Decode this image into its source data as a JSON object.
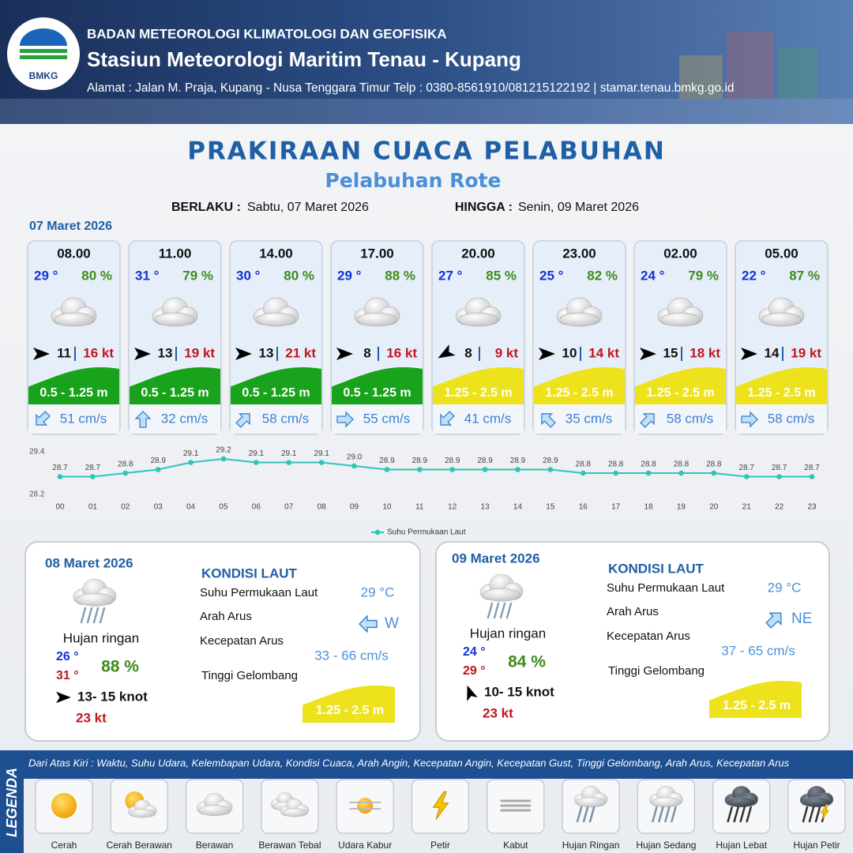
{
  "header": {
    "agency": "BADAN METEOROLOGI KLIMATOLOGI DAN GEOFISIKA",
    "station": "Stasiun Meteorologi Maritim Tenau - Kupang",
    "address": "Alamat : Jalan M. Praja, Kupang - Nusa Tenggara Timur Telp : 0380-8561910/081215122192  | stamar.tenau.bmkg.go.id",
    "logo": "BMKG"
  },
  "title": "PRAKIRAAN CUACA PELABUHAN",
  "subtitle": "Pelabuhan Rote",
  "validity": {
    "from_label": "BERLAKU :",
    "from": "Sabtu, 07 Maret 2026",
    "to_label": "HINGGA :",
    "to": "Senin, 09 Maret 2026"
  },
  "day1": {
    "date": "07 Maret 2026",
    "slots": [
      {
        "time": "08.00",
        "temp": "29 °",
        "humidity": "80 %",
        "wind": "11",
        "gust": "16 kt",
        "wave": "0.5 - 1.25 m",
        "current": "51 cm/s",
        "wind_arrow_deg": 0,
        "current_arrow_deg": 135,
        "wave_color": "#19a31c"
      },
      {
        "time": "11.00",
        "temp": "31 °",
        "humidity": "79 %",
        "wind": "13",
        "gust": "19 kt",
        "wave": "0.5 - 1.25 m",
        "current": "32 cm/s",
        "wind_arrow_deg": 0,
        "current_arrow_deg": -90,
        "wave_color": "#19a31c"
      },
      {
        "time": "14.00",
        "temp": "30 °",
        "humidity": "80 %",
        "wind": "13",
        "gust": "21 kt",
        "wave": "0.5 - 1.25 m",
        "current": "58 cm/s",
        "wind_arrow_deg": 0,
        "current_arrow_deg": -45,
        "wave_color": "#19a31c"
      },
      {
        "time": "17.00",
        "temp": "29 °",
        "humidity": "88 %",
        "wind": "8",
        "gust": "16 kt",
        "wave": "0.5 - 1.25 m",
        "current": "55 cm/s",
        "wind_arrow_deg": 0,
        "current_arrow_deg": 0,
        "wave_color": "#19a31c"
      },
      {
        "time": "20.00",
        "temp": "27 °",
        "humidity": "85 %",
        "wind": "8",
        "gust": "9 kt",
        "wave": "1.25 - 2.5 m",
        "current": "41 cm/s",
        "wind_arrow_deg": 150,
        "current_arrow_deg": 135,
        "wave_color": "#eee21c"
      },
      {
        "time": "23.00",
        "temp": "25 °",
        "humidity": "82 %",
        "wind": "10",
        "gust": "14 kt",
        "wave": "1.25 - 2.5 m",
        "current": "35 cm/s",
        "wind_arrow_deg": 0,
        "current_arrow_deg": -135,
        "wave_color": "#eee21c"
      },
      {
        "time": "02.00",
        "temp": "24 °",
        "humidity": "79 %",
        "wind": "15",
        "gust": "18 kt",
        "wave": "1.25 - 2.5 m",
        "current": "58 cm/s",
        "wind_arrow_deg": 0,
        "current_arrow_deg": -45,
        "wave_color": "#eee21c"
      },
      {
        "time": "05.00",
        "temp": "22 °",
        "humidity": "87 %",
        "wind": "14",
        "gust": "19 kt",
        "wave": "1.25 - 2.5 m",
        "current": "58 cm/s",
        "wind_arrow_deg": 0,
        "current_arrow_deg": 0,
        "wave_color": "#eee21c"
      }
    ]
  },
  "chart_data": {
    "type": "line",
    "categories": [
      "00",
      "01",
      "02",
      "03",
      "04",
      "05",
      "06",
      "07",
      "08",
      "09",
      "10",
      "11",
      "12",
      "13",
      "14",
      "15",
      "16",
      "17",
      "18",
      "19",
      "20",
      "21",
      "22",
      "23"
    ],
    "series": [
      {
        "name": "Suhu Permukaan Laut",
        "color": "#2fc4b8",
        "values": [
          28.7,
          28.7,
          28.8,
          28.9,
          29.1,
          29.2,
          29.1,
          29.1,
          29.1,
          29.0,
          28.9,
          28.9,
          28.9,
          28.9,
          28.9,
          28.9,
          28.8,
          28.8,
          28.8,
          28.8,
          28.8,
          28.7,
          28.7,
          28.7
        ],
        "value_labels": [
          "28.7",
          "28.7",
          "28.8",
          "28.9",
          "29.1",
          "29.2",
          "29.1",
          "29.1",
          "29.1",
          "29.0",
          "28.9",
          "28.9",
          "28.9",
          "28.9",
          "28.9",
          "28.9",
          "28.8",
          "28.8",
          "28.8",
          "28.8",
          "28.8",
          "28.7",
          "28.7",
          "28.7"
        ]
      }
    ],
    "ylim": [
      28.2,
      29.4
    ],
    "yticks": [
      28.2,
      29.4
    ],
    "grid": false,
    "legend": "bottom"
  },
  "day2": {
    "date": "08 Maret 2026",
    "condition": "Hujan ringan",
    "temp_min": "26 °",
    "temp_max": "31 °",
    "humidity": "88 %",
    "wind": "13- 15 knot",
    "gust": "23 kt",
    "wind_arrow_deg": 0,
    "sea": {
      "title": "KONDISI LAUT",
      "sst_label": "Suhu Permukaan Laut",
      "sst": "29 °C",
      "dir_label": "Arah Arus",
      "dir": "W",
      "dir_arrow_deg": 180,
      "speed_label": "Kecepatan Arus",
      "speed": "33 - 66 cm/s",
      "wave_label": "Tinggi Gelombang",
      "wave": "1.25 - 2.5 m",
      "wave_color": "#eee21c"
    }
  },
  "day3": {
    "date": "09 Maret 2026",
    "condition": "Hujan ringan",
    "temp_min": "24 °",
    "temp_max": "29 °",
    "humidity": "84 %",
    "wind": "10- 15 knot",
    "gust": "23 kt",
    "wind_arrow_deg": -110,
    "sea": {
      "title": "KONDISI LAUT",
      "sst_label": "Suhu Permukaan Laut",
      "sst": "29 °C",
      "dir_label": "Arah Arus",
      "dir": "NE",
      "dir_arrow_deg": -45,
      "speed_label": "Kecepatan Arus",
      "speed": "37 - 65 cm/s",
      "wave_label": "Tinggi Gelombang",
      "wave": "1.25 - 2.5 m",
      "wave_color": "#eee21c"
    }
  },
  "legend": {
    "title": "LEGENDA",
    "description": "Dari Atas Kiri : Waktu, Suhu Udara, Kelembapan Udara, Kondisi Cuaca, Arah Angin, Kecepatan Angin, Kecepatan Gust, Tinggi Gelombang, Arah Arus, Kecepatan Arus",
    "items": [
      "Cerah",
      "Cerah Berawan",
      "Berawan",
      "Berawan Tebal",
      "Udara Kabur",
      "Petir",
      "Kabut",
      "Hujan Ringan",
      "Hujan Sedang",
      "Hujan Lebat",
      "Hujan Petir"
    ]
  }
}
